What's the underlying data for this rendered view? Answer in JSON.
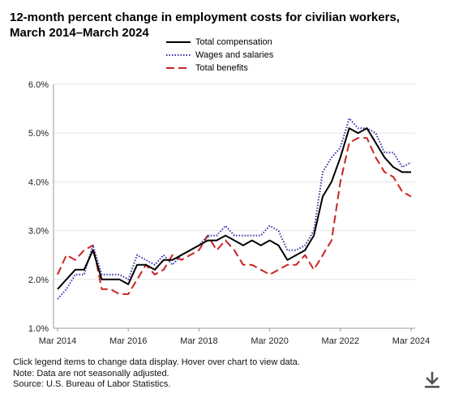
{
  "title_line1": "12-month percent change in employment costs for civilian workers,",
  "title_line2": "March 2014–March 2024",
  "footer": {
    "line1": "Click legend items to change data display. Hover over chart to view data.",
    "line2": "Note: Data are not seasonally adjusted.",
    "line3": "Source: U.S. Bureau of Labor Statistics."
  },
  "download_icon": "download-arrow-icon",
  "chart_data": {
    "type": "line",
    "title": "12-month percent change in employment costs for civilian workers, March 2014–March 2024",
    "xlabel": "",
    "ylabel": "",
    "ylim": [
      1.0,
      6.0
    ],
    "yticks": [
      "1.0%",
      "2.0%",
      "3.0%",
      "4.0%",
      "5.0%",
      "6.0%"
    ],
    "xticks": [
      "Mar 2014",
      "Mar 2016",
      "Mar 2018",
      "Mar 2020",
      "Mar 2022",
      "Mar 2024"
    ],
    "grid": "horizontal",
    "legend_position": "top",
    "x": [
      "Mar 2014",
      "Jun 2014",
      "Sep 2014",
      "Dec 2014",
      "Mar 2015",
      "Jun 2015",
      "Sep 2015",
      "Dec 2015",
      "Mar 2016",
      "Jun 2016",
      "Sep 2016",
      "Dec 2016",
      "Mar 2017",
      "Jun 2017",
      "Sep 2017",
      "Dec 2017",
      "Mar 2018",
      "Jun 2018",
      "Sep 2018",
      "Dec 2018",
      "Mar 2019",
      "Jun 2019",
      "Sep 2019",
      "Dec 2019",
      "Mar 2020",
      "Jun 2020",
      "Sep 2020",
      "Dec 2020",
      "Mar 2021",
      "Jun 2021",
      "Sep 2021",
      "Dec 2021",
      "Mar 2022",
      "Jun 2022",
      "Sep 2022",
      "Dec 2022",
      "Mar 2023",
      "Jun 2023",
      "Sep 2023",
      "Dec 2023",
      "Mar 2024"
    ],
    "series": [
      {
        "name": "Total compensation",
        "color": "#000000",
        "dash": "solid",
        "values": [
          1.8,
          2.0,
          2.2,
          2.2,
          2.6,
          2.0,
          2.0,
          2.0,
          1.9,
          2.3,
          2.3,
          2.2,
          2.4,
          2.4,
          2.5,
          2.6,
          2.7,
          2.8,
          2.8,
          2.9,
          2.8,
          2.7,
          2.8,
          2.7,
          2.8,
          2.7,
          2.4,
          2.5,
          2.6,
          2.9,
          3.7,
          4.0,
          4.5,
          5.1,
          5.0,
          5.1,
          4.8,
          4.5,
          4.3,
          4.2,
          4.2
        ]
      },
      {
        "name": "Wages and salaries",
        "color": "#3333aa",
        "dash": "dotted",
        "values": [
          1.6,
          1.8,
          2.1,
          2.1,
          2.7,
          2.1,
          2.1,
          2.1,
          2.0,
          2.5,
          2.4,
          2.3,
          2.5,
          2.3,
          2.5,
          2.6,
          2.7,
          2.9,
          2.9,
          3.1,
          2.9,
          2.9,
          2.9,
          2.9,
          3.1,
          3.0,
          2.6,
          2.6,
          2.7,
          3.0,
          4.2,
          4.5,
          4.7,
          5.3,
          5.1,
          5.1,
          5.0,
          4.6,
          4.6,
          4.3,
          4.4
        ]
      },
      {
        "name": "Total benefits",
        "color": "#cc2222",
        "dash": "dashed",
        "values": [
          2.1,
          2.5,
          2.4,
          2.6,
          2.7,
          1.8,
          1.8,
          1.7,
          1.7,
          2.0,
          2.3,
          2.1,
          2.2,
          2.5,
          2.4,
          2.5,
          2.6,
          2.9,
          2.6,
          2.8,
          2.6,
          2.3,
          2.3,
          2.2,
          2.1,
          2.2,
          2.3,
          2.3,
          2.5,
          2.2,
          2.5,
          2.8,
          4.0,
          4.8,
          4.9,
          4.9,
          4.5,
          4.2,
          4.1,
          3.8,
          3.7
        ]
      }
    ]
  }
}
